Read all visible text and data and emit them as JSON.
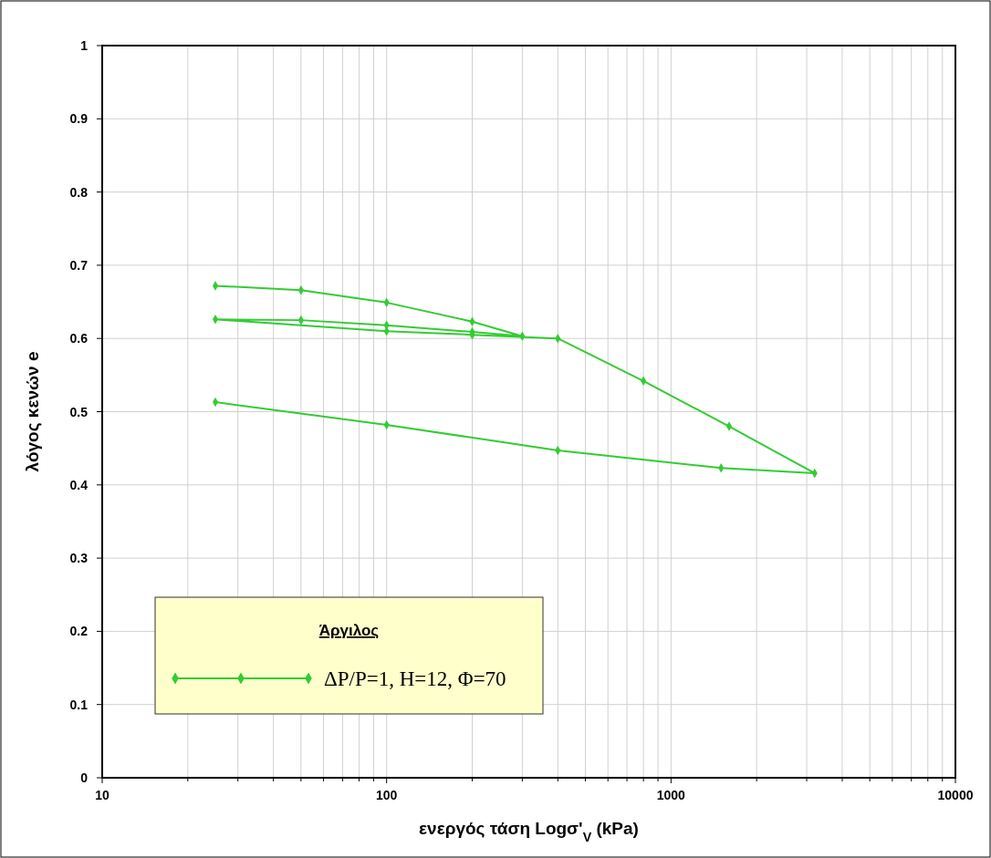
{
  "chart_data": {
    "type": "line",
    "xlabel": "ενεργός τάση Logσ'$_{V}$ (kPa)",
    "ylabel": "λόγος κενών e",
    "legend_title": "Άργιλος",
    "log": "x",
    "grid": true,
    "legend": "bottom left",
    "marker": "diamond",
    "line_style": "solid",
    "xlim": [
      10,
      10000
    ],
    "ylim": [
      0,
      1
    ],
    "xticks": [
      10,
      {
        "value": 20,
        "label": null
      },
      {
        "value": 30,
        "label": null
      },
      {
        "value": 40,
        "label": null
      },
      {
        "value": 50,
        "label": null
      },
      {
        "value": 60,
        "label": null
      },
      {
        "value": 70,
        "label": null
      },
      {
        "value": 80,
        "label": null
      },
      {
        "value": 90,
        "label": null
      },
      100,
      {
        "value": 200,
        "label": null
      },
      {
        "value": 300,
        "label": null
      },
      {
        "value": 400,
        "label": null
      },
      {
        "value": 500,
        "label": null
      },
      {
        "value": 600,
        "label": null
      },
      {
        "value": 700,
        "label": null
      },
      {
        "value": 800,
        "label": null
      },
      {
        "value": 900,
        "label": null
      },
      1000,
      {
        "value": 2000,
        "label": null
      },
      {
        "value": 3000,
        "label": null
      },
      {
        "value": 4000,
        "label": null
      },
      {
        "value": 5000,
        "label": null
      },
      {
        "value": 6000,
        "label": null
      },
      {
        "value": 7000,
        "label": null
      },
      {
        "value": 8000,
        "label": null
      },
      {
        "value": 9000,
        "label": null
      },
      10000
    ],
    "yticks": [
      0,
      0.1,
      0.2,
      0.3,
      0.4,
      0.5,
      0.6,
      0.7,
      0.8,
      0.9,
      1
    ],
    "series": [
      {
        "name": "ΔP/P=1, H=12, Φ=70",
        "color": "#33cc33",
        "x": [
          25,
          50,
          100,
          200,
          300,
          200,
          100,
          50,
          25,
          100,
          200,
          400,
          800,
          1600,
          3200,
          1500,
          400,
          100,
          25
        ],
        "values": [
          0.672,
          0.666,
          0.649,
          0.623,
          0.603,
          0.609,
          0.618,
          0.625,
          0.626,
          0.61,
          0.605,
          0.6,
          0.542,
          0.48,
          0.416,
          0.423,
          0.447,
          0.482,
          0.513
        ]
      }
    ]
  }
}
